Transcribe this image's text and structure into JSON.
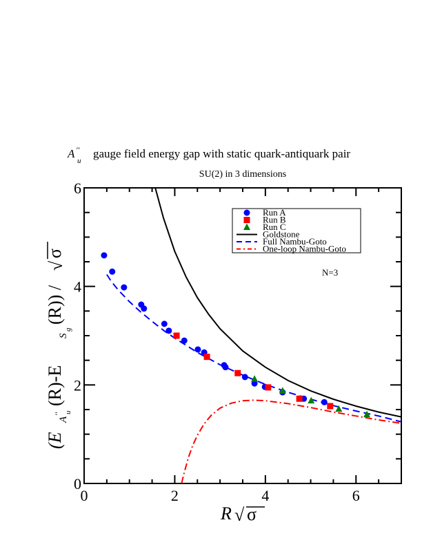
{
  "chart_data": {
    "type": "scatter",
    "title_prefix": "A",
    "title_sup": "′′",
    "title_sub": "u",
    "title": "gauge field energy gap with static quark-antiquark pair",
    "subtitle": "SU(2) in 3 dimensions",
    "xlabel_main": "R",
    "xlabel_sqrt": "σ",
    "ylabel": "(E_{A''_u}(R) - E_{S_g}(R)) / √σ",
    "ylabel_parts": {
      "open": "(E",
      "sub1": "A",
      "sub1_sup": "′′",
      "sub1_sub": "u",
      "mid": "(R)-E",
      "sub2": "S",
      "sub2_sub": "g",
      "close": "(R)) / ",
      "sqrt_sym": "√",
      "sigma": "σ"
    },
    "annotation": "N=3",
    "xlim": [
      0,
      7
    ],
    "ylim": [
      0,
      6
    ],
    "x_ticks": [
      0,
      2,
      4,
      6
    ],
    "x_tick_labels": [
      "0",
      "2",
      "4",
      "6"
    ],
    "y_ticks": [
      0,
      2,
      4,
      6
    ],
    "y_tick_labels": [
      "0",
      "2",
      "4",
      "6"
    ],
    "minor_step": 0.5,
    "grid": false,
    "legend_position": "top-right",
    "series": [
      {
        "name": "Run A",
        "kind": "points",
        "marker": "circle",
        "color": "#0000ff",
        "points": [
          [
            0.44,
            4.63
          ],
          [
            0.62,
            4.3
          ],
          [
            0.88,
            3.98
          ],
          [
            1.26,
            3.63
          ],
          [
            1.32,
            3.55
          ],
          [
            1.77,
            3.24
          ],
          [
            1.87,
            3.1
          ],
          [
            2.21,
            2.9
          ],
          [
            2.51,
            2.72
          ],
          [
            2.65,
            2.66
          ],
          [
            3.09,
            2.4
          ],
          [
            3.12,
            2.36
          ],
          [
            3.55,
            2.16
          ],
          [
            3.76,
            2.03
          ],
          [
            3.99,
            1.96
          ],
          [
            4.38,
            1.85
          ],
          [
            4.85,
            1.72
          ],
          [
            5.3,
            1.65
          ]
        ]
      },
      {
        "name": "Run B",
        "kind": "points",
        "marker": "square",
        "color": "#ff0000",
        "points": [
          [
            2.04,
            3.0
          ],
          [
            2.71,
            2.57
          ],
          [
            3.39,
            2.24
          ],
          [
            4.06,
            1.95
          ],
          [
            4.75,
            1.72
          ],
          [
            5.43,
            1.57
          ]
        ]
      },
      {
        "name": "Run C",
        "kind": "points",
        "marker": "triangle",
        "color": "#008000",
        "points": [
          [
            3.76,
            2.12
          ],
          [
            4.38,
            1.88
          ],
          [
            5.01,
            1.68
          ],
          [
            5.62,
            1.51
          ],
          [
            6.24,
            1.4
          ]
        ]
      },
      {
        "name": "Goldstone",
        "kind": "line",
        "style": "solid",
        "color": "#000000",
        "points": [
          [
            1.57,
            6.0
          ],
          [
            1.75,
            5.39
          ],
          [
            2.0,
            4.71
          ],
          [
            2.25,
            4.19
          ],
          [
            2.5,
            3.77
          ],
          [
            2.75,
            3.43
          ],
          [
            3.0,
            3.14
          ],
          [
            3.5,
            2.69
          ],
          [
            4.0,
            2.36
          ],
          [
            4.5,
            2.09
          ],
          [
            5.0,
            1.88
          ],
          [
            5.5,
            1.71
          ],
          [
            6.0,
            1.57
          ],
          [
            6.5,
            1.45
          ],
          [
            7.0,
            1.35
          ]
        ]
      },
      {
        "name": "Full Nambu-Goto",
        "kind": "line",
        "style": "dashed",
        "color": "#0000ff",
        "points": [
          [
            0.5,
            4.24
          ],
          [
            0.6,
            4.1
          ],
          [
            0.75,
            3.93
          ],
          [
            1.0,
            3.69
          ],
          [
            1.25,
            3.48
          ],
          [
            1.5,
            3.29
          ],
          [
            1.75,
            3.11
          ],
          [
            2.0,
            2.95
          ],
          [
            2.5,
            2.66
          ],
          [
            3.0,
            2.41
          ],
          [
            3.5,
            2.2
          ],
          [
            4.0,
            2.01
          ],
          [
            4.5,
            1.85
          ],
          [
            5.0,
            1.71
          ],
          [
            5.5,
            1.58
          ],
          [
            6.0,
            1.47
          ],
          [
            6.5,
            1.37
          ],
          [
            7.0,
            1.25
          ]
        ]
      },
      {
        "name": "One-loop Nambu-Goto",
        "kind": "line",
        "style": "dashdot",
        "color": "#ff0000",
        "points": [
          [
            2.15,
            0.0
          ],
          [
            2.2,
            0.19
          ],
          [
            2.3,
            0.52
          ],
          [
            2.4,
            0.78
          ],
          [
            2.5,
            0.98
          ],
          [
            2.65,
            1.21
          ],
          [
            2.8,
            1.38
          ],
          [
            3.0,
            1.53
          ],
          [
            3.25,
            1.63
          ],
          [
            3.5,
            1.68
          ],
          [
            3.75,
            1.69
          ],
          [
            4.0,
            1.68
          ],
          [
            4.5,
            1.62
          ],
          [
            5.0,
            1.54
          ],
          [
            5.5,
            1.45
          ],
          [
            6.0,
            1.37
          ],
          [
            6.5,
            1.29
          ],
          [
            7.0,
            1.22
          ]
        ]
      }
    ]
  }
}
